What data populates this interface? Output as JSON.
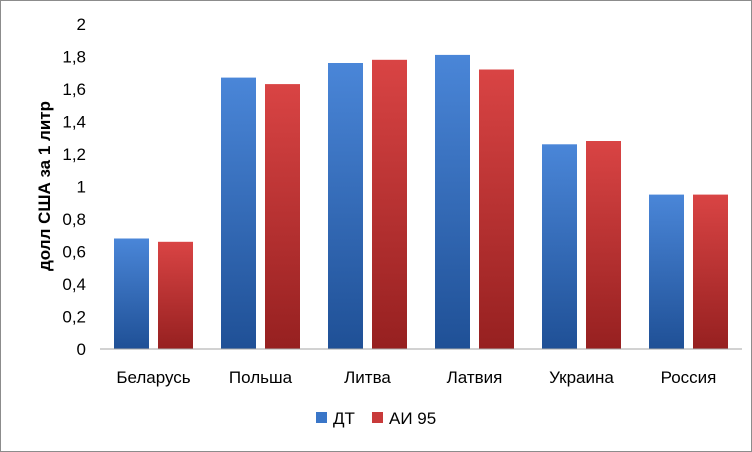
{
  "chart_data": {
    "type": "bar",
    "title": "",
    "xlabel": "",
    "ylabel": "долл США за 1 литр",
    "ylim": [
      0,
      2
    ],
    "y_ticks": [
      "0",
      "0,2",
      "0,4",
      "0,6",
      "0,8",
      "1",
      "1,2",
      "1,4",
      "1,6",
      "1,8",
      "2"
    ],
    "grid": false,
    "legend_position": "bottom",
    "categories": [
      "Беларусь",
      "Польша",
      "Литва",
      "Латвия",
      "Украина",
      "Россия"
    ],
    "series": [
      {
        "name": "ДТ",
        "color": "#3a76c8",
        "values": [
          0.68,
          1.67,
          1.76,
          1.81,
          1.26,
          0.95
        ]
      },
      {
        "name": "АИ 95",
        "color": "#c83a3a",
        "values": [
          0.66,
          1.63,
          1.78,
          1.72,
          1.28,
          0.95
        ]
      }
    ]
  }
}
